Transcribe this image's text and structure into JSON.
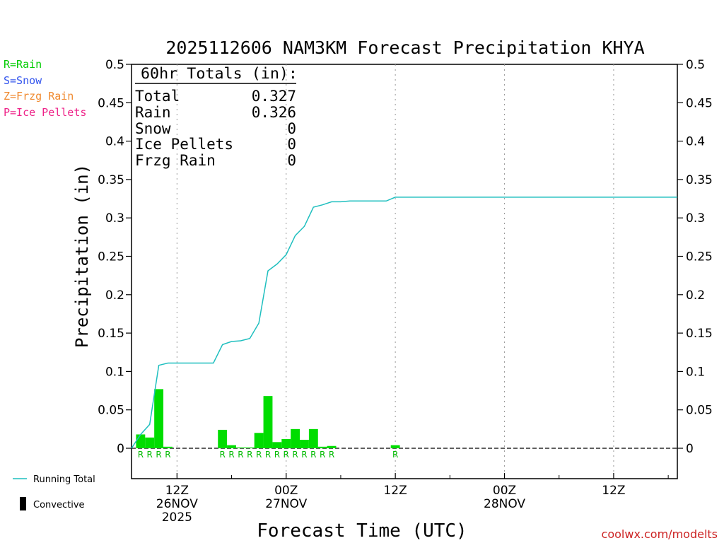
{
  "chart_data": {
    "type": "bar+line",
    "title": "2025112606 NAM3KM Forecast Precipitation KHYA",
    "ylabel": "Precipitation (in)",
    "xlabel": "Forecast Time (UTC)",
    "ylim": [
      -0.04,
      0.5
    ],
    "yticks": [
      "0",
      "0.05",
      "0.1",
      "0.15",
      "0.2",
      "0.25",
      "0.3",
      "0.35",
      "0.4",
      "0.45",
      "0.5"
    ],
    "ytick_values": [
      0,
      0.05,
      0.1,
      0.15,
      0.2,
      0.25,
      0.3,
      0.35,
      0.4,
      0.45,
      0.5
    ],
    "xlim_hours": [
      7,
      67
    ],
    "xticks": [
      {
        "hour": 12,
        "lines": [
          "12Z",
          "26NOV",
          "2025"
        ]
      },
      {
        "hour": 24,
        "lines": [
          "00Z",
          "27NOV"
        ]
      },
      {
        "hour": 36,
        "lines": [
          "12Z"
        ]
      },
      {
        "hour": 48,
        "lines": [
          "00Z",
          "28NOV"
        ]
      },
      {
        "hour": 60,
        "lines": [
          "12Z"
        ]
      }
    ],
    "bars": [
      {
        "hour": 8,
        "value": 0.018,
        "type": "R"
      },
      {
        "hour": 9,
        "value": 0.014,
        "type": "R"
      },
      {
        "hour": 10,
        "value": 0.077,
        "type": "R"
      },
      {
        "hour": 11,
        "value": 0.002,
        "type": "R"
      },
      {
        "hour": 17,
        "value": 0.024,
        "type": "R"
      },
      {
        "hour": 18,
        "value": 0.004,
        "type": "R"
      },
      {
        "hour": 19,
        "value": 0.001,
        "type": "R"
      },
      {
        "hour": 20,
        "value": 0.001,
        "type": "R"
      },
      {
        "hour": 21,
        "value": 0.02,
        "type": "R"
      },
      {
        "hour": 22,
        "value": 0.068,
        "type": "R"
      },
      {
        "hour": 23,
        "value": 0.008,
        "type": "R"
      },
      {
        "hour": 24,
        "value": 0.012,
        "type": "R"
      },
      {
        "hour": 25,
        "value": 0.025,
        "type": "R"
      },
      {
        "hour": 26,
        "value": 0.011,
        "type": "R"
      },
      {
        "hour": 27,
        "value": 0.025,
        "type": "R"
      },
      {
        "hour": 28,
        "value": 0.002,
        "type": "R"
      },
      {
        "hour": 29,
        "value": 0.003,
        "type": "R"
      },
      {
        "hour": 36,
        "value": 0.004,
        "type": "R"
      }
    ],
    "running_total": {
      "hours": [
        7,
        8,
        9,
        10,
        11,
        12,
        16,
        17,
        18,
        19,
        20,
        21,
        22,
        23,
        24,
        25,
        26,
        27,
        28,
        29,
        30,
        31,
        32,
        33,
        34,
        35,
        36,
        67
      ],
      "values": [
        0,
        0.018,
        0.031,
        0.108,
        0.111,
        0.111,
        0.111,
        0.135,
        0.139,
        0.14,
        0.143,
        0.163,
        0.231,
        0.24,
        0.252,
        0.277,
        0.289,
        0.314,
        0.317,
        0.321,
        0.321,
        0.322,
        0.322,
        0.322,
        0.322,
        0.322,
        0.327,
        0.327
      ]
    },
    "series_colors": {
      "rain": "#00dd00",
      "running_total": "#1fbfbf",
      "convective": "#000000"
    }
  },
  "totals_box": {
    "header": "60hr Totals (in):",
    "rows": [
      {
        "label": "Total",
        "value": "0.327"
      },
      {
        "label": "Rain",
        "value": "0.326"
      },
      {
        "label": "Snow",
        "value": "0"
      },
      {
        "label": "Ice Pellets",
        "value": "0"
      },
      {
        "label": "Frzg Rain",
        "value": "0"
      }
    ]
  },
  "type_legend": [
    {
      "text": "R=Rain",
      "color": "#00cc00"
    },
    {
      "text": "S=Snow",
      "color": "#3355ee"
    },
    {
      "text": "Z=Frzg Rain",
      "color": "#f08a30"
    },
    {
      "text": "P=Ice Pellets",
      "color": "#ee2288"
    }
  ],
  "bottom_legend": {
    "running_total_label": "Running Total",
    "convective_label": "Convective"
  },
  "credit": "coolwx.com/modelts"
}
